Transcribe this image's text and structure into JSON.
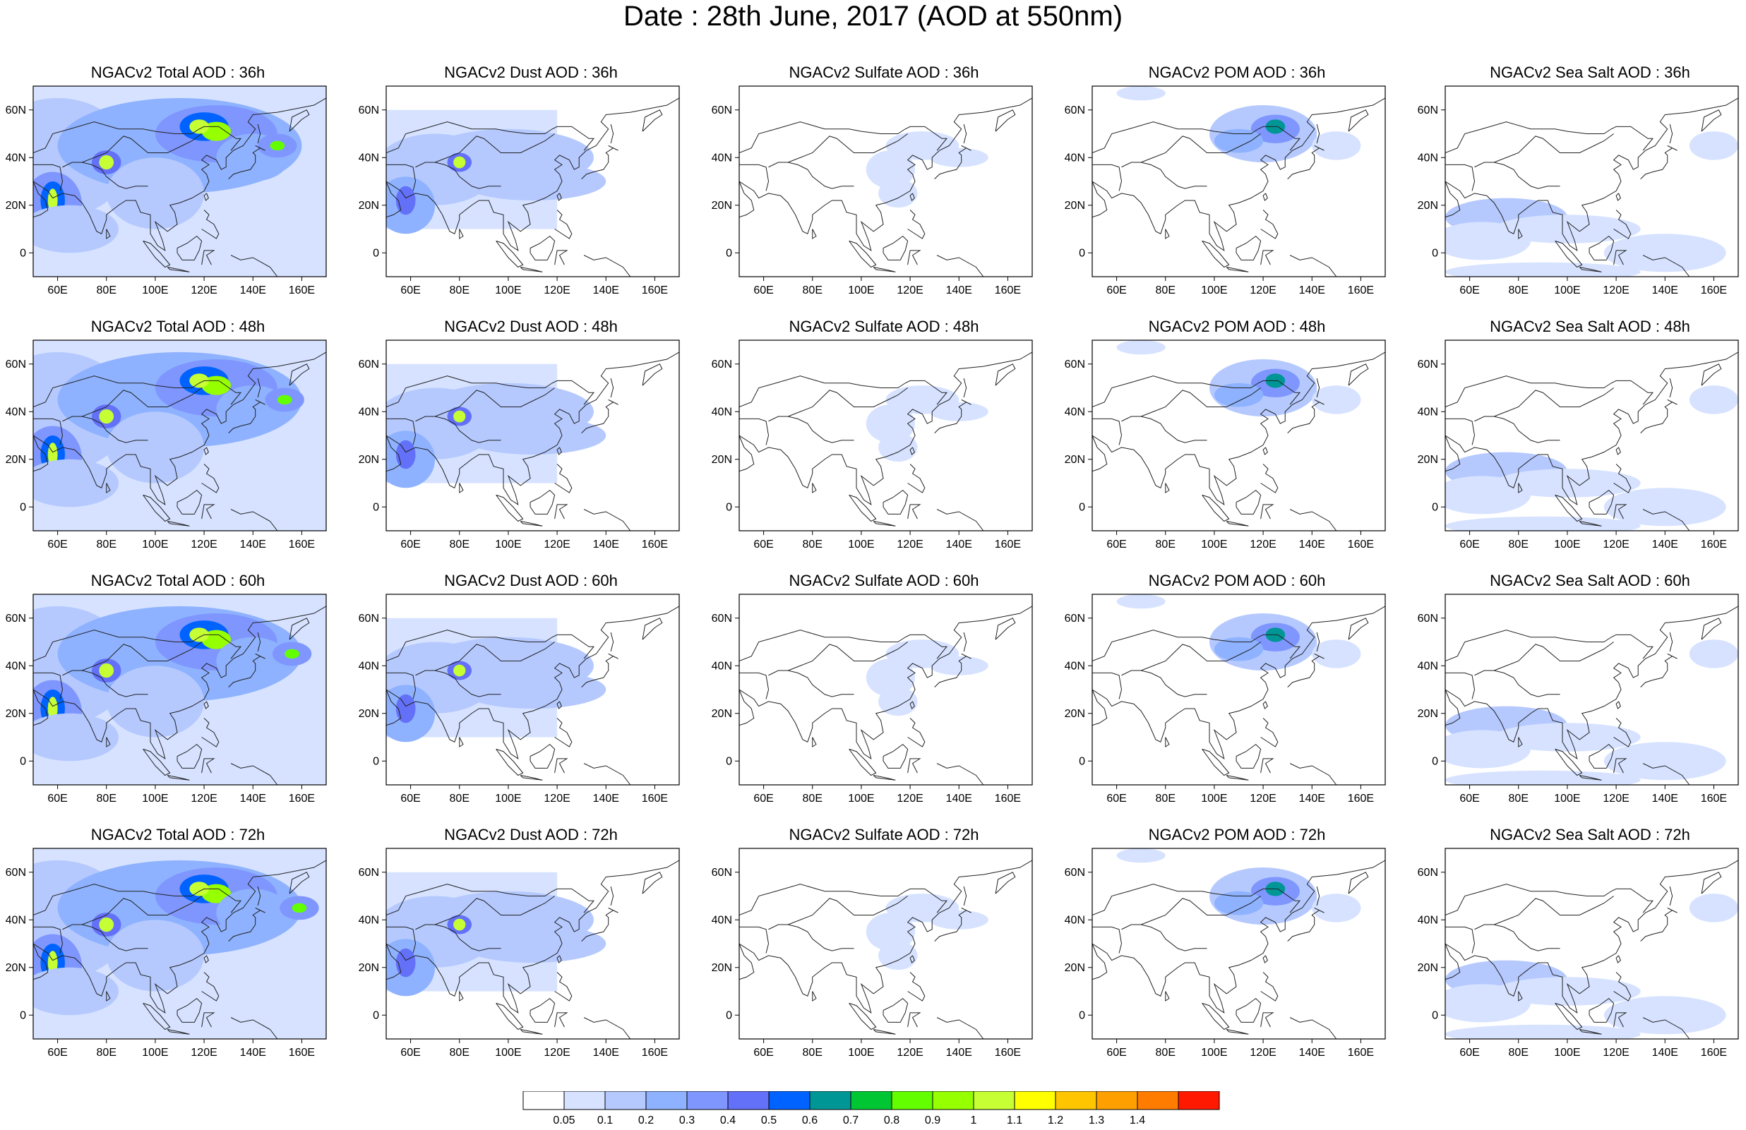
{
  "figure": {
    "title": "Date : 28th June, 2017 (AOD at 550nm)"
  },
  "axes": {
    "lat_ticks": [
      "60N",
      "40N",
      "20N",
      "0"
    ],
    "lon_ticks": [
      "60E",
      "80E",
      "100E",
      "120E",
      "140E",
      "160E"
    ]
  },
  "columns": [
    "Total",
    "Dust",
    "Sulfate",
    "POM",
    "Sea Salt"
  ],
  "rows": [
    "36h",
    "48h",
    "60h",
    "72h"
  ],
  "panels": [
    {
      "title": "NGACv2 Total AOD : 36h",
      "species": "total",
      "hour": 36
    },
    {
      "title": "NGACv2 Dust AOD : 36h",
      "species": "dust",
      "hour": 36
    },
    {
      "title": "NGACv2 Sulfate AOD : 36h",
      "species": "sulfate",
      "hour": 36
    },
    {
      "title": "NGACv2 POM AOD : 36h",
      "species": "pom",
      "hour": 36
    },
    {
      "title": "NGACv2 Sea Salt AOD : 36h",
      "species": "seasalt",
      "hour": 36
    },
    {
      "title": "NGACv2 Total AOD : 48h",
      "species": "total",
      "hour": 48
    },
    {
      "title": "NGACv2 Dust AOD : 48h",
      "species": "dust",
      "hour": 48
    },
    {
      "title": "NGACv2 Sulfate AOD : 48h",
      "species": "sulfate",
      "hour": 48
    },
    {
      "title": "NGACv2 POM AOD : 48h",
      "species": "pom",
      "hour": 48
    },
    {
      "title": "NGACv2 Sea Salt AOD : 48h",
      "species": "seasalt",
      "hour": 48
    },
    {
      "title": "NGACv2 Total AOD : 60h",
      "species": "total",
      "hour": 60
    },
    {
      "title": "NGACv2 Dust AOD : 60h",
      "species": "dust",
      "hour": 60
    },
    {
      "title": "NGACv2 Sulfate AOD : 60h",
      "species": "sulfate",
      "hour": 60
    },
    {
      "title": "NGACv2 POM AOD : 60h",
      "species": "pom",
      "hour": 60
    },
    {
      "title": "NGACv2 Sea Salt AOD : 60h",
      "species": "seasalt",
      "hour": 60
    },
    {
      "title": "NGACv2 Total AOD : 72h",
      "species": "total",
      "hour": 72
    },
    {
      "title": "NGACv2 Dust AOD : 72h",
      "species": "dust",
      "hour": 72
    },
    {
      "title": "NGACv2 Sulfate AOD : 72h",
      "species": "sulfate",
      "hour": 72
    },
    {
      "title": "NGACv2 POM AOD : 72h",
      "species": "pom",
      "hour": 72
    },
    {
      "title": "NGACv2 Sea Salt  AOD : 72h",
      "species": "seasalt",
      "hour": 72
    }
  ],
  "colorbar": {
    "labels": [
      "0.05",
      "0.1",
      "0.2",
      "0.3",
      "0.4",
      "0.5",
      "0.6",
      "0.7",
      "0.8",
      "0.9",
      "1",
      "1.1",
      "1.2",
      "1.3",
      "1.4"
    ],
    "colors": [
      "#ffffff",
      "#d6e2ff",
      "#b5c9ff",
      "#8eb2ff",
      "#7f96ff",
      "#6370f8",
      "#0063ff",
      "#009696",
      "#00c633",
      "#63ff00",
      "#96ff00",
      "#c6ff33",
      "#ffff00",
      "#ffc600",
      "#ffa000",
      "#ff7c00",
      "#ff1900"
    ]
  },
  "map": {
    "coastline_color": "#222222",
    "frame_color": "#000000"
  }
}
